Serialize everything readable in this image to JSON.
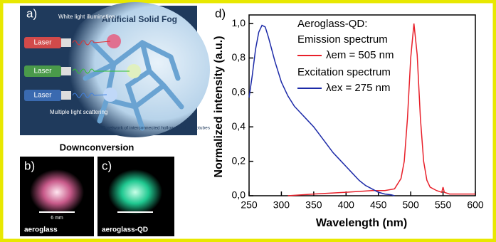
{
  "panels": {
    "labels": [
      "a)",
      "b)",
      "c)",
      "d)"
    ],
    "illustration": {
      "title": "Artificial Solid Fog",
      "illumination": "White light illumination",
      "lasers": [
        "Laser",
        "Laser",
        "Laser"
      ],
      "scattering": "Multiple light scattering",
      "network": "3D network of interconnected hollow h-BN microtubes"
    },
    "photos": {
      "title": "Downconversion",
      "scale": "6 mm",
      "captions": [
        "aeroglass",
        "aeroglass-QD"
      ]
    }
  },
  "chart_data": {
    "type": "line",
    "x_label": "Wavelength (nm)",
    "y_label": "Normalized intensity (a.u.)",
    "legend_title": "Aeroglass-QD:",
    "xlim": [
      250,
      600
    ],
    "ylim": [
      0,
      1.05
    ],
    "xticks": [
      250,
      300,
      350,
      400,
      450,
      500,
      550,
      600
    ],
    "yticks": [
      {
        "value": 0,
        "label": "0,0"
      },
      {
        "value": 0.2,
        "label": "0,2"
      },
      {
        "value": 0.4,
        "label": "0,4"
      },
      {
        "value": 0.6,
        "label": "0,6"
      },
      {
        "value": 0.8,
        "label": "0,8"
      },
      {
        "value": 1.0,
        "label": "1,0"
      }
    ],
    "series": [
      {
        "label": "Emission spectrum",
        "name": "λem = 505 nm",
        "color": "#e8202a",
        "x": [
          310,
          350,
          400,
          440,
          460,
          475,
          485,
          490,
          495,
          500,
          505,
          510,
          515,
          520,
          525,
          530,
          540,
          548,
          550,
          552,
          560,
          580,
          600
        ],
        "values": [
          0.0,
          0.01,
          0.02,
          0.03,
          0.03,
          0.04,
          0.1,
          0.2,
          0.45,
          0.8,
          1.0,
          0.82,
          0.45,
          0.2,
          0.09,
          0.05,
          0.03,
          0.02,
          0.05,
          0.02,
          0.01,
          0.01,
          0.01
        ]
      },
      {
        "label": "Excitation spectrum",
        "name": "λex = 275 nm",
        "color": "#1c2aa8",
        "x": [
          250,
          255,
          260,
          265,
          270,
          275,
          280,
          290,
          300,
          310,
          320,
          330,
          340,
          350,
          360,
          370,
          380,
          390,
          400,
          410,
          420,
          430,
          440,
          450,
          460,
          470,
          475
        ],
        "values": [
          0.57,
          0.7,
          0.85,
          0.95,
          0.99,
          0.98,
          0.92,
          0.78,
          0.66,
          0.58,
          0.52,
          0.48,
          0.44,
          0.4,
          0.35,
          0.3,
          0.25,
          0.21,
          0.17,
          0.13,
          0.09,
          0.06,
          0.04,
          0.02,
          0.01,
          0.005,
          0.0
        ]
      }
    ]
  }
}
